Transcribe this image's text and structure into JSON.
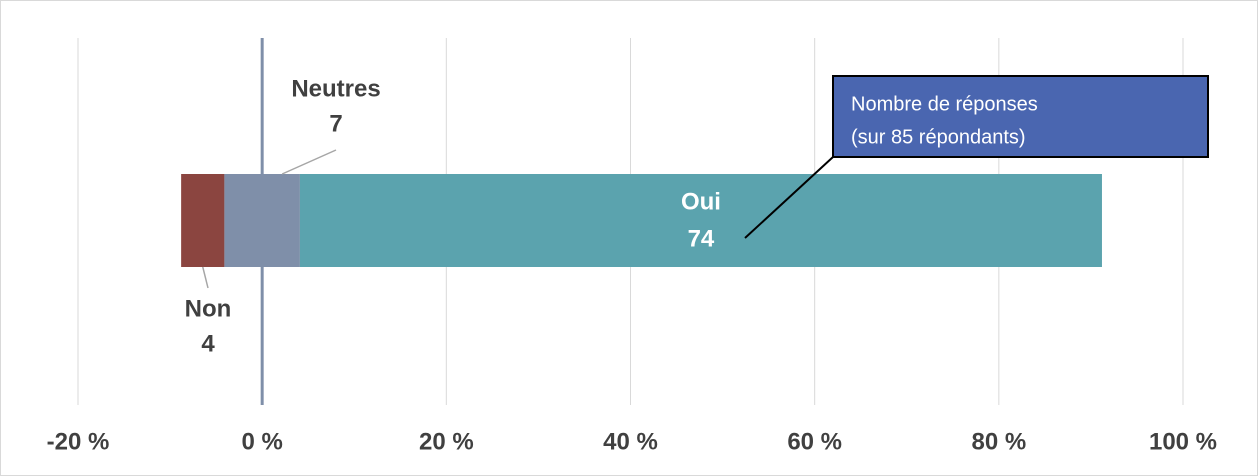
{
  "chart_data": {
    "type": "bar",
    "orientation": "horizontal",
    "layout": "diverging",
    "categories": [
      null
    ],
    "series": [
      {
        "name": "Non",
        "color": "#8b4540",
        "values": [
          4.7
        ],
        "counts": [
          4
        ]
      },
      {
        "name": "Neutres",
        "color": "#7f8fa9",
        "values": [
          8.2
        ],
        "counts": [
          7
        ],
        "centered": true
      },
      {
        "name": "Oui",
        "color": "#5ba3ae",
        "values": [
          87.1
        ],
        "counts": [
          74
        ]
      }
    ],
    "xlim": [
      -20,
      100
    ],
    "xticks": [
      {
        "value": -20,
        "label": "-20 %"
      },
      {
        "value": 0,
        "label": "0 %"
      },
      {
        "value": 20,
        "label": "20 %"
      },
      {
        "value": 40,
        "label": "40 %"
      },
      {
        "value": 60,
        "label": "60 %"
      },
      {
        "value": 80,
        "label": "80 %"
      },
      {
        "value": 100,
        "label": "100 %"
      }
    ],
    "grid": true,
    "annotation": [
      "Nombre de réponses",
      "(sur 85 répondants)"
    ]
  }
}
